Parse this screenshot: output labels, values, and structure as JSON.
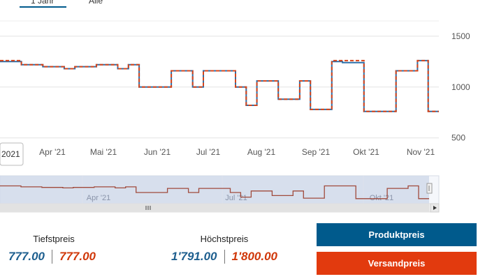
{
  "tabs": [
    {
      "label": "1 Jahr",
      "active": true
    },
    {
      "label": "Alle",
      "active": false
    }
  ],
  "chart_data": {
    "type": "line",
    "y_ticks": [
      500,
      1000,
      1500
    ],
    "ylim": [
      450,
      1650
    ],
    "x_ticks": [
      "2021",
      "Apr '21",
      "Mai '21",
      "Jun '21",
      "Jul '21",
      "Aug '21",
      "Sep '21",
      "Okt '21",
      "Nov '21"
    ],
    "navigator_ticks": [
      "Apr '21",
      "Jul '21",
      "Okt '21"
    ],
    "grid": true,
    "series": [
      {
        "color": "#2c6fa8",
        "values": [
          1250,
          1250,
          1220,
          1220,
          1200,
          1200,
          1180,
          1200,
          1200,
          1220,
          1220,
          1180,
          1220,
          1000,
          1000,
          1000,
          1160,
          1160,
          1000,
          1160,
          1160,
          1160,
          1000,
          820,
          1060,
          1060,
          880,
          880,
          1060,
          780,
          780,
          1250,
          1240,
          1240,
          760,
          760,
          760,
          1160,
          1160,
          1260,
          760
        ]
      },
      {
        "color": "#d7441a",
        "values": [
          1260,
          1260,
          1220,
          1220,
          1200,
          1200,
          1180,
          1200,
          1200,
          1220,
          1220,
          1180,
          1220,
          1000,
          1000,
          1000,
          1160,
          1160,
          1000,
          1160,
          1160,
          1160,
          1000,
          820,
          1060,
          1060,
          880,
          880,
          1060,
          780,
          780,
          1260,
          1260,
          1260,
          760,
          760,
          760,
          1160,
          1160,
          1260,
          760
        ]
      }
    ]
  },
  "stats": {
    "min_label": "Tiefstpreis",
    "min_product": "777.00",
    "min_shipping": "777.00",
    "max_label": "Höchstpreis",
    "max_product": "1'791.00",
    "max_shipping": "1'800.00"
  },
  "buttons": {
    "product": "Produktpreis",
    "shipping": "Versandpreis"
  },
  "colors": {
    "blue": "#005a8c",
    "red": "#e23a0e"
  }
}
